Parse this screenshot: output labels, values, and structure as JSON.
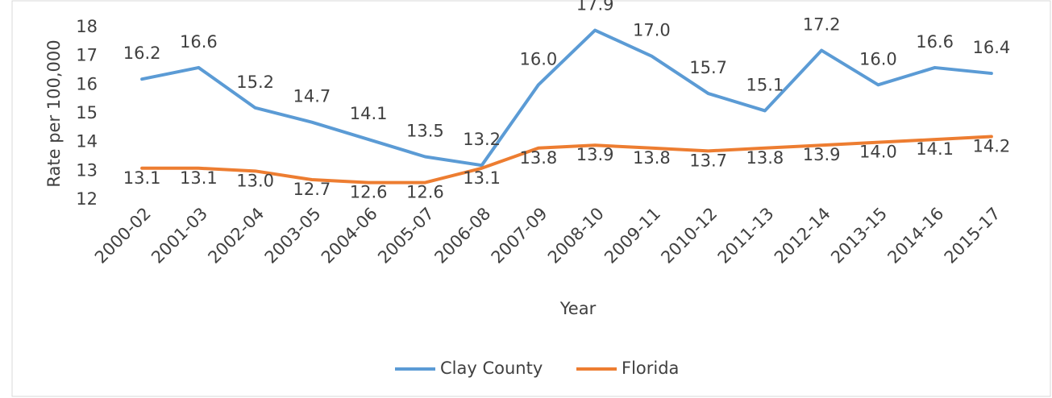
{
  "chart_data": {
    "type": "line",
    "x_label": "Year",
    "y_label": "Rate per 100,000",
    "categories": [
      "2000-02",
      "2001-03",
      "2002-04",
      "2003-05",
      "2004-06",
      "2005-07",
      "2006-08",
      "2007-09",
      "2008-10",
      "2009-11",
      "2010-12",
      "2011-13",
      "2012-14",
      "2013-15",
      "2014-16",
      "2015-17"
    ],
    "series": [
      {
        "name": "Clay County",
        "color": "#5b9bd5",
        "values": [
          16.2,
          16.6,
          15.2,
          14.7,
          14.1,
          13.5,
          13.2,
          16.0,
          17.9,
          17.0,
          15.7,
          15.1,
          17.2,
          16.0,
          16.6,
          16.4
        ],
        "value_labels": [
          "16.2",
          "16.6",
          "15.2",
          "14.7",
          "14.1",
          "13.5",
          "13.2",
          "16.0",
          "17.9",
          "17.0",
          "15.7",
          "15.1",
          "17.2",
          "16.0",
          "16.6",
          "16.4"
        ]
      },
      {
        "name": "Florida",
        "color": "#ed7d31",
        "values": [
          13.1,
          13.1,
          13.0,
          12.7,
          12.6,
          12.6,
          13.1,
          13.8,
          13.9,
          13.8,
          13.7,
          13.8,
          13.9,
          14.0,
          14.1,
          14.2
        ],
        "value_labels": [
          "13.1",
          "13.1",
          "13.0",
          "12.7",
          "12.6",
          "12.6",
          "13.1",
          "13.8",
          "13.9",
          "13.8",
          "13.7",
          "13.8",
          "13.9",
          "14.0",
          "14.1",
          "14.2"
        ]
      }
    ],
    "ylim": [
      12,
      18
    ],
    "yticks": [
      12,
      13,
      14,
      15,
      16,
      17,
      18
    ],
    "grid": false,
    "legend": "bottom"
  }
}
